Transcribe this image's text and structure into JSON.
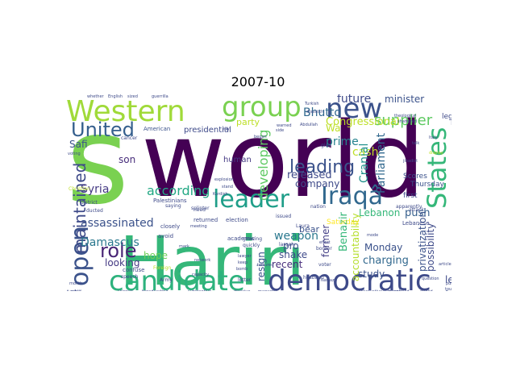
{
  "title": "2007-10",
  "words": [
    {
      "text": "world",
      "color": "#440154"
    },
    {
      "text": "Hariri",
      "color": "#35b779"
    },
    {
      "text": "s",
      "color": "#7ad151"
    },
    {
      "text": "Western",
      "color": "#a0da39"
    },
    {
      "text": "group",
      "color": "#7ad151"
    },
    {
      "text": "new",
      "color": "#3b528b"
    },
    {
      "text": "democratic",
      "color": "#3e4a89"
    },
    {
      "text": "candidate",
      "color": "#2db27d"
    },
    {
      "text": "leader",
      "color": "#1f9e89"
    },
    {
      "text": "Iraqâ",
      "color": "#31688e"
    },
    {
      "text": "States",
      "color": "#35b779"
    },
    {
      "text": "United",
      "color": "#355f8d"
    },
    {
      "text": "open",
      "color": "#3b528b"
    },
    {
      "text": "role",
      "color": "#482475"
    },
    {
      "text": "maintained",
      "color": "#3e4a89"
    },
    {
      "text": "leading",
      "color": "#3b528b"
    },
    {
      "text": "developing",
      "color": "#5ec962"
    },
    {
      "text": "according",
      "color": "#22a884"
    },
    {
      "text": "supplier",
      "color": "#5ec962"
    },
    {
      "text": "Bhutto",
      "color": "#31688e"
    },
    {
      "text": "future",
      "color": "#3e4a89"
    },
    {
      "text": "minister",
      "color": "#3b528b"
    },
    {
      "text": "Congressional",
      "color": "#bddf26"
    },
    {
      "text": "prime",
      "color": "#26828e"
    },
    {
      "text": "cash",
      "color": "#bddf26"
    },
    {
      "text": "Cranial",
      "color": "#21918c"
    },
    {
      "text": "Parliament",
      "color": "#31688e"
    },
    {
      "text": "released",
      "color": "#3e4a89"
    },
    {
      "text": "weapon",
      "color": "#2a788e"
    },
    {
      "text": "assassinated",
      "color": "#3b528b"
    },
    {
      "text": "Damascus",
      "color": "#2a788e"
    },
    {
      "text": "Syria",
      "color": "#443983"
    },
    {
      "text": "Safi",
      "color": "#3b528b"
    },
    {
      "text": "son",
      "color": "#472d7b"
    },
    {
      "text": "hope",
      "color": "#6ece58"
    },
    {
      "text": "looking",
      "color": "#443983"
    },
    {
      "text": "company",
      "color": "#3e4a89"
    },
    {
      "text": "human",
      "color": "#443983"
    },
    {
      "text": "push",
      "color": "#355f8d"
    },
    {
      "text": "Lebanon",
      "color": "#35b779"
    },
    {
      "text": "Monday",
      "color": "#3b528b"
    },
    {
      "text": "charging",
      "color": "#31688e"
    },
    {
      "text": "privatization",
      "color": "#3b528b"
    },
    {
      "text": "possibility",
      "color": "#3e4a89"
    },
    {
      "text": "accountability",
      "color": "#b5de2b"
    },
    {
      "text": "Benazir",
      "color": "#35b779"
    },
    {
      "text": "former",
      "color": "#433e85"
    },
    {
      "text": "study",
      "color": "#3b528b"
    },
    {
      "text": "shake",
      "color": "#3e4a89"
    },
    {
      "text": "recent",
      "color": "#472d7b"
    },
    {
      "text": "resign",
      "color": "#3b528b"
    },
    {
      "text": "pro",
      "color": "#3b528b"
    },
    {
      "text": "bear",
      "color": "#3b528b"
    },
    {
      "text": "left",
      "color": "#3e4a89"
    },
    {
      "text": "Wa",
      "color": "#bddf26"
    },
    {
      "text": "Rush",
      "color": "#3e4a89"
    },
    {
      "text": "legal",
      "color": "#3e4a89"
    },
    {
      "text": "Thursday",
      "color": "#3b528b"
    },
    {
      "text": "Saturday",
      "color": "#fde725"
    },
    {
      "text": "found",
      "color": "#3b528b"
    },
    {
      "text": "first",
      "color": "#3e4a89"
    },
    {
      "text": "Scores",
      "color": "#3b528b"
    },
    {
      "text": "party",
      "color": "#bddf26"
    },
    {
      "text": "presidential",
      "color": "#3e4a89"
    },
    {
      "text": "American",
      "color": "#3b528b"
    },
    {
      "text": "Palestinians",
      "color": "#3e4a89"
    },
    {
      "text": "academic",
      "color": "#3e4a89"
    },
    {
      "text": "election",
      "color": "#3e4a89"
    },
    {
      "text": "returned",
      "color": "#3e4a89"
    },
    {
      "text": "closely",
      "color": "#3e4a89"
    },
    {
      "text": "avoid",
      "color": "#3e4a89"
    },
    {
      "text": "confuse",
      "color": "#3e4a89"
    },
    {
      "text": "speech",
      "color": "#3e4a89"
    },
    {
      "text": "voter",
      "color": "#3e4a89"
    },
    {
      "text": "husband",
      "color": "#3e4a89"
    },
    {
      "text": "Lebanese",
      "color": "#3e4a89"
    },
    {
      "text": "Laura",
      "color": "#3e4a89"
    },
    {
      "text": "issued",
      "color": "#3e4a89"
    },
    {
      "text": "nation",
      "color": "#3e4a89"
    },
    {
      "text": "splinter",
      "color": "#3e4a89"
    },
    {
      "text": "science",
      "color": "#3e4a89"
    },
    {
      "text": "broadcasting",
      "color": "#3e4a89"
    },
    {
      "text": "substantive",
      "color": "#3e4a89"
    },
    {
      "text": "magazine",
      "color": "#3e4a89"
    },
    {
      "text": "conservative",
      "color": "#3e4a89"
    },
    {
      "text": "translated",
      "color": "#3e4a89"
    },
    {
      "text": "ended",
      "color": "#3e4a89"
    },
    {
      "text": "decisive",
      "color": "#3e4a89"
    },
    {
      "text": "theological",
      "color": "#3e4a89"
    },
    {
      "text": "shattered",
      "color": "#3e4a89"
    },
    {
      "text": "jihadist",
      "color": "#3e4a89"
    },
    {
      "text": "whether",
      "color": "#3e4a89"
    },
    {
      "text": "English",
      "color": "#3e4a89"
    },
    {
      "text": "sized",
      "color": "#3e4a89"
    },
    {
      "text": "guerrilla",
      "color": "#3e4a89"
    },
    {
      "text": "Abdullah",
      "color": "#3e4a89"
    },
    {
      "text": "Turkish",
      "color": "#3e4a89"
    },
    {
      "text": "dispatch",
      "color": "#3e4a89"
    },
    {
      "text": "Christian",
      "color": "#bddf26"
    },
    {
      "text": "Foreign",
      "color": "#bddf26"
    },
    {
      "text": "Army",
      "color": "#3e4a89"
    },
    {
      "text": "Arabia",
      "color": "#3e4a89"
    },
    {
      "text": "month",
      "color": "#3e4a89"
    },
    {
      "text": "retail",
      "color": "#3e4a89"
    },
    {
      "text": "voting",
      "color": "#3e4a89"
    },
    {
      "text": "display",
      "color": "#bddf26"
    },
    {
      "text": "article",
      "color": "#3e4a89"
    },
    {
      "text": "pursuit",
      "color": "#3e4a89"
    },
    {
      "text": "toughness",
      "color": "#3e4a89"
    },
    {
      "text": "ducted",
      "color": "#3e4a89"
    },
    {
      "text": "district",
      "color": "#3e4a89"
    },
    {
      "text": "need",
      "color": "#3e4a89"
    },
    {
      "text": "quickly",
      "color": "#3e4a89"
    },
    {
      "text": "border",
      "color": "#3e4a89"
    },
    {
      "text": "growing",
      "color": "#3e4a89"
    },
    {
      "text": "largely",
      "color": "#3e4a89"
    },
    {
      "text": "apparently",
      "color": "#3e4a89"
    },
    {
      "text": "attack",
      "color": "#3e4a89"
    },
    {
      "text": "message",
      "color": "#3e4a89"
    },
    {
      "text": "letter",
      "color": "#3e4a89"
    },
    {
      "text": "bomb",
      "color": "#3e4a89"
    },
    {
      "text": "effort",
      "color": "#3e4a89"
    },
    {
      "text": "tortured",
      "color": "#3e4a89"
    },
    {
      "text": "Nawaz",
      "color": "#3e4a89"
    },
    {
      "text": "give",
      "color": "#3e4a89"
    },
    {
      "text": "mode",
      "color": "#3e4a89"
    },
    {
      "text": "Italy",
      "color": "#3e4a89"
    },
    {
      "text": "talk",
      "color": "#3e4a89"
    },
    {
      "text": "Kurdish",
      "color": "#3e4a89"
    },
    {
      "text": "capacity",
      "color": "#3e4a89"
    },
    {
      "text": "lawyer",
      "color": "#3e4a89"
    },
    {
      "text": "keep",
      "color": "#3e4a89"
    },
    {
      "text": "mark",
      "color": "#3e4a89"
    },
    {
      "text": "cancer",
      "color": "#3e4a89"
    },
    {
      "text": "stand",
      "color": "#3e4a89"
    },
    {
      "text": "explosion",
      "color": "#3e4a89"
    },
    {
      "text": "network",
      "color": "#3e4a89"
    },
    {
      "text": "saying",
      "color": "#3e4a89"
    },
    {
      "text": "question",
      "color": "#3e4a89"
    },
    {
      "text": "meeting",
      "color": "#3e4a89"
    },
    {
      "text": "ally",
      "color": "#3e4a89"
    },
    {
      "text": "warned",
      "color": "#3e4a89"
    },
    {
      "text": "side",
      "color": "#3e4a89"
    },
    {
      "text": "began",
      "color": "#3e4a89"
    }
  ]
}
